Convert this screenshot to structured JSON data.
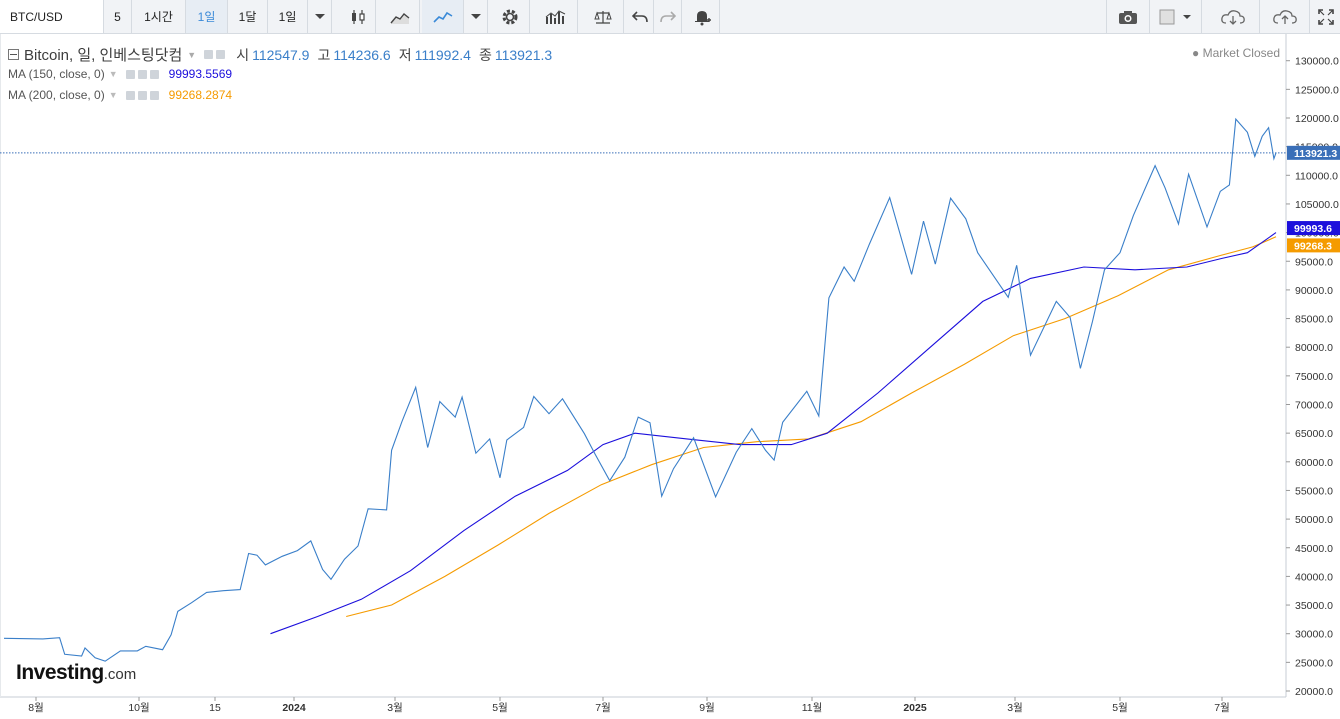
{
  "toolbar": {
    "symbol": "BTC/USD",
    "intervals": [
      "5",
      "1시간",
      "1일",
      "1달",
      "1일"
    ],
    "active_interval_index": 2
  },
  "legend": {
    "title": "Bitcoin, 일, 인베스팅닷컴",
    "open_label": "시",
    "open": "112547.9",
    "high_label": "고",
    "high": "114236.6",
    "low_label": "저",
    "low": "111992.4",
    "close_label": "종",
    "close": "113921.3",
    "ma1_label": "MA (150, close, 0)",
    "ma1_value": "99993.5569",
    "ma1_color": "#1c0fdc",
    "ma2_label": "MA (200, close, 0)",
    "ma2_value": "99268.2874",
    "ma2_color": "#f59b00",
    "market_status": "● Market Closed"
  },
  "logo": {
    "main": "Investing",
    "suffix": ".com"
  },
  "chart_data": {
    "type": "line",
    "price_line_color": "#3a7fc9",
    "y_ticks": [
      "130000.0",
      "125000.0",
      "120000.0",
      "115000.0",
      "110000.0",
      "105000.0",
      "100000.0",
      "95000.0",
      "90000.0",
      "85000.0",
      "80000.0",
      "75000.0",
      "70000.0",
      "65000.0",
      "60000.0",
      "55000.0",
      "50000.0",
      "45000.0",
      "40000.0",
      "35000.0",
      "30000.0",
      "25000.0",
      "20000.0"
    ],
    "x_ticks": [
      "8월",
      "10월",
      "15",
      "2024",
      "3월",
      "5월",
      "7월",
      "9월",
      "11월",
      "2025",
      "3월",
      "5월",
      "7월"
    ],
    "last_price_tag": "113921.3",
    "ma1_tag": "99993.6",
    "ma2_tag": "99268.3",
    "series": [
      {
        "name": "Bitcoin",
        "points": [
          [
            "2023-07-25",
            29200
          ],
          [
            "2023-08-05",
            29100
          ],
          [
            "2023-08-15",
            29300
          ],
          [
            "2023-08-18",
            26400
          ],
          [
            "2023-08-28",
            26100
          ],
          [
            "2023-08-30",
            27500
          ],
          [
            "2023-09-05",
            25800
          ],
          [
            "2023-09-11",
            25200
          ],
          [
            "2023-09-20",
            27000
          ],
          [
            "2023-09-30",
            27000
          ],
          [
            "2023-10-05",
            27800
          ],
          [
            "2023-10-15",
            27200
          ],
          [
            "2023-10-20",
            29800
          ],
          [
            "2023-10-24",
            33900
          ],
          [
            "2023-11-01",
            35400
          ],
          [
            "2023-11-10",
            37200
          ],
          [
            "2023-11-20",
            37500
          ],
          [
            "2023-11-30",
            37700
          ],
          [
            "2023-12-05",
            44000
          ],
          [
            "2023-12-10",
            43700
          ],
          [
            "2023-12-15",
            42000
          ],
          [
            "2023-12-25",
            43500
          ],
          [
            "2024-01-03",
            44500
          ],
          [
            "2024-01-11",
            46200
          ],
          [
            "2024-01-18",
            41200
          ],
          [
            "2024-01-23",
            39500
          ],
          [
            "2024-01-31",
            43000
          ],
          [
            "2024-02-08",
            45300
          ],
          [
            "2024-02-14",
            51800
          ],
          [
            "2024-02-25",
            51600
          ],
          [
            "2024-02-28",
            62000
          ],
          [
            "2024-03-05",
            67000
          ],
          [
            "2024-03-13",
            73000
          ],
          [
            "2024-03-20",
            62500
          ],
          [
            "2024-03-27",
            70500
          ],
          [
            "2024-04-05",
            67800
          ],
          [
            "2024-04-09",
            71300
          ],
          [
            "2024-04-17",
            61500
          ],
          [
            "2024-04-25",
            64000
          ],
          [
            "2024-05-01",
            57200
          ],
          [
            "2024-05-05",
            63800
          ],
          [
            "2024-05-15",
            66000
          ],
          [
            "2024-05-21",
            71400
          ],
          [
            "2024-05-30",
            68400
          ],
          [
            "2024-06-07",
            71000
          ],
          [
            "2024-06-20",
            64900
          ],
          [
            "2024-06-26",
            61500
          ],
          [
            "2024-07-05",
            56700
          ],
          [
            "2024-07-14",
            60800
          ],
          [
            "2024-07-22",
            67800
          ],
          [
            "2024-07-29",
            66800
          ],
          [
            "2024-08-05",
            54000
          ],
          [
            "2024-08-12",
            58800
          ],
          [
            "2024-08-24",
            64200
          ],
          [
            "2024-09-06",
            53900
          ],
          [
            "2024-09-18",
            61700
          ],
          [
            "2024-09-27",
            65800
          ],
          [
            "2024-10-05",
            62000
          ],
          [
            "2024-10-10",
            60300
          ],
          [
            "2024-10-15",
            66900
          ],
          [
            "2024-10-29",
            72300
          ],
          [
            "2024-11-05",
            68000
          ],
          [
            "2024-11-11",
            88600
          ],
          [
            "2024-11-20",
            94000
          ],
          [
            "2024-11-26",
            91500
          ],
          [
            "2024-12-05",
            98000
          ],
          [
            "2024-12-17",
            106100
          ],
          [
            "2024-12-30",
            92700
          ],
          [
            "2025-01-06",
            102000
          ],
          [
            "2025-01-13",
            94500
          ],
          [
            "2025-01-22",
            106000
          ],
          [
            "2025-01-31",
            102400
          ],
          [
            "2025-02-07",
            96500
          ],
          [
            "2025-02-25",
            88700
          ],
          [
            "2025-03-02",
            94300
          ],
          [
            "2025-03-10",
            78600
          ],
          [
            "2025-03-25",
            88000
          ],
          [
            "2025-04-02",
            85200
          ],
          [
            "2025-04-08",
            76300
          ],
          [
            "2025-04-15",
            84500
          ],
          [
            "2025-04-22",
            93500
          ],
          [
            "2025-05-01",
            96500
          ],
          [
            "2025-05-09",
            103000
          ],
          [
            "2025-05-22",
            111700
          ],
          [
            "2025-05-28",
            107800
          ],
          [
            "2025-06-05",
            101500
          ],
          [
            "2025-06-11",
            110200
          ],
          [
            "2025-06-22",
            101000
          ],
          [
            "2025-06-30",
            107200
          ],
          [
            "2025-07-08",
            108300
          ],
          [
            "2025-07-14",
            119800
          ],
          [
            "2025-07-25",
            117500
          ],
          [
            "2025-08-01",
            113300
          ],
          [
            "2025-08-08",
            116800
          ],
          [
            "2025-08-14",
            118300
          ],
          [
            "2025-08-19",
            112900
          ],
          [
            "2025-08-21",
            113921
          ]
        ]
      },
      {
        "name": "MA (150, close, 0)",
        "points": [
          [
            "2023-12-18",
            30000
          ],
          [
            "2024-01-15",
            33000
          ],
          [
            "2024-02-10",
            36000
          ],
          [
            "2024-03-10",
            41000
          ],
          [
            "2024-04-10",
            48000
          ],
          [
            "2024-05-10",
            54000
          ],
          [
            "2024-06-10",
            58500
          ],
          [
            "2024-07-01",
            63000
          ],
          [
            "2024-07-20",
            65000
          ],
          [
            "2024-08-20",
            64000
          ],
          [
            "2024-09-20",
            63000
          ],
          [
            "2024-10-20",
            63000
          ],
          [
            "2024-11-10",
            65000
          ],
          [
            "2024-12-10",
            72000
          ],
          [
            "2025-01-10",
            80000
          ],
          [
            "2025-02-10",
            88000
          ],
          [
            "2025-03-10",
            92000
          ],
          [
            "2025-04-10",
            94000
          ],
          [
            "2025-05-10",
            93500
          ],
          [
            "2025-06-10",
            94000
          ],
          [
            "2025-07-01",
            95500
          ],
          [
            "2025-07-25",
            96500
          ],
          [
            "2025-08-21",
            99994
          ]
        ]
      },
      {
        "name": "MA (200, close, 0)",
        "points": [
          [
            "2024-02-01",
            33000
          ],
          [
            "2024-02-28",
            35000
          ],
          [
            "2024-03-30",
            40000
          ],
          [
            "2024-04-30",
            45500
          ],
          [
            "2024-05-30",
            51000
          ],
          [
            "2024-06-30",
            56000
          ],
          [
            "2024-07-30",
            59500
          ],
          [
            "2024-08-30",
            62500
          ],
          [
            "2024-09-30",
            63500
          ],
          [
            "2024-10-30",
            64000
          ],
          [
            "2024-11-30",
            67000
          ],
          [
            "2024-12-30",
            72000
          ],
          [
            "2025-01-30",
            77000
          ],
          [
            "2025-02-28",
            82000
          ],
          [
            "2025-03-30",
            85000
          ],
          [
            "2025-04-30",
            89000
          ],
          [
            "2025-05-30",
            93500
          ],
          [
            "2025-06-30",
            96000
          ],
          [
            "2025-07-30",
            97500
          ],
          [
            "2025-08-21",
            99268
          ]
        ]
      }
    ]
  }
}
